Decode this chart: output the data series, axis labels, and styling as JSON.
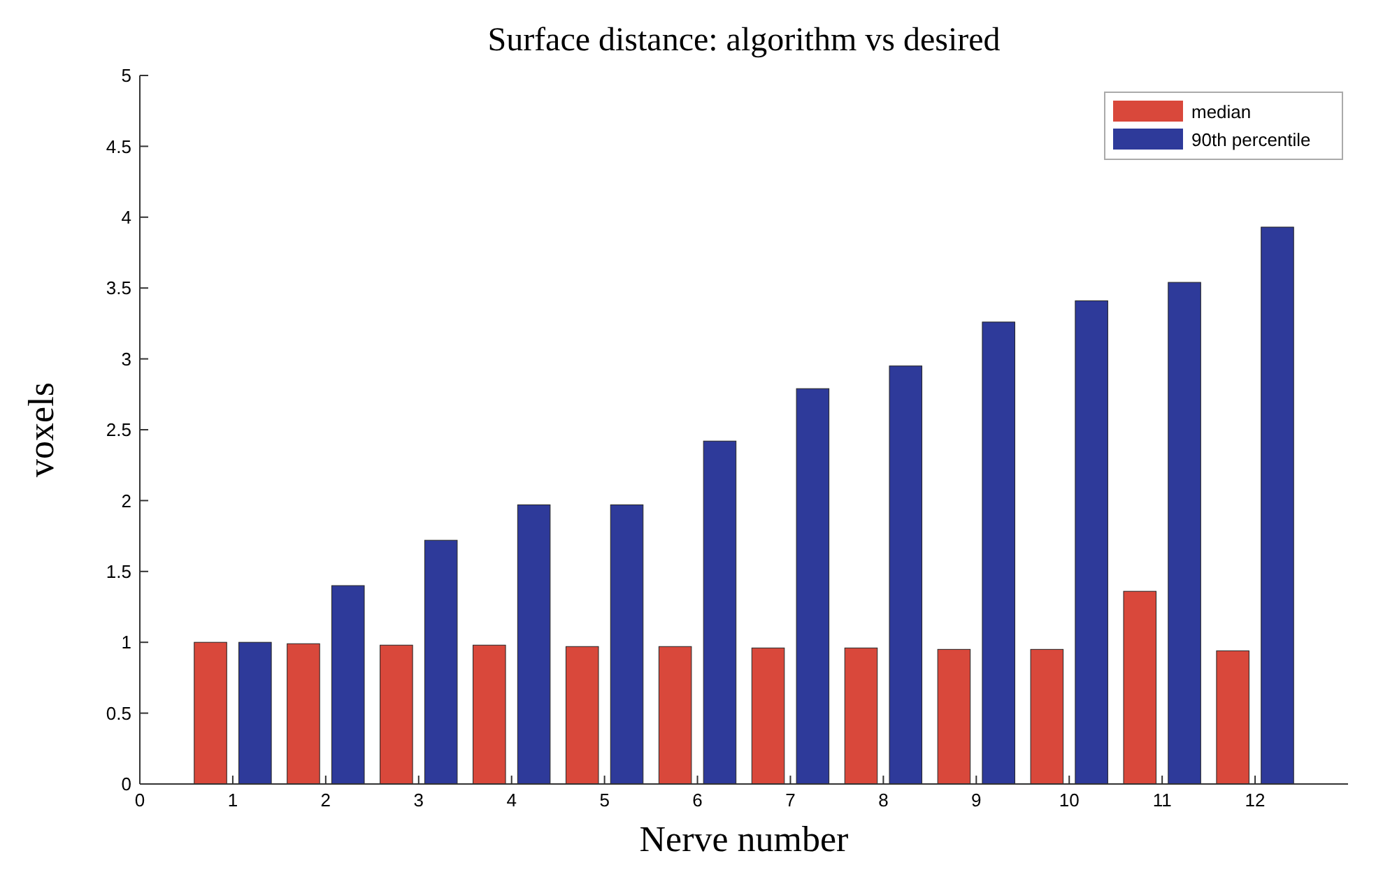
{
  "chart_data": {
    "type": "bar",
    "title": "Surface distance: algorithm vs desired",
    "xlabel": "Nerve number",
    "ylabel": "voxels",
    "x": [
      1,
      2,
      3,
      4,
      5,
      6,
      7,
      8,
      9,
      10,
      11,
      12
    ],
    "series": [
      {
        "name": "median",
        "color": "#d9483b",
        "values": [
          1.0,
          0.99,
          0.98,
          0.98,
          0.97,
          0.97,
          0.96,
          0.96,
          0.95,
          0.95,
          1.36,
          0.94
        ]
      },
      {
        "name": "90th percentile",
        "color": "#2e3a9a",
        "values": [
          1.0,
          1.4,
          1.72,
          1.97,
          1.97,
          2.42,
          2.79,
          2.95,
          3.26,
          3.41,
          3.54,
          3.93
        ]
      }
    ],
    "xlim": [
      0,
      13
    ],
    "xticks": [
      0,
      1,
      2,
      3,
      4,
      5,
      6,
      7,
      8,
      9,
      10,
      11,
      12
    ],
    "ylim": [
      0,
      5
    ],
    "yticks": [
      0,
      0.5,
      1,
      1.5,
      2,
      2.5,
      3,
      3.5,
      4,
      4.5,
      5
    ],
    "grid": false,
    "legend": "top right"
  }
}
